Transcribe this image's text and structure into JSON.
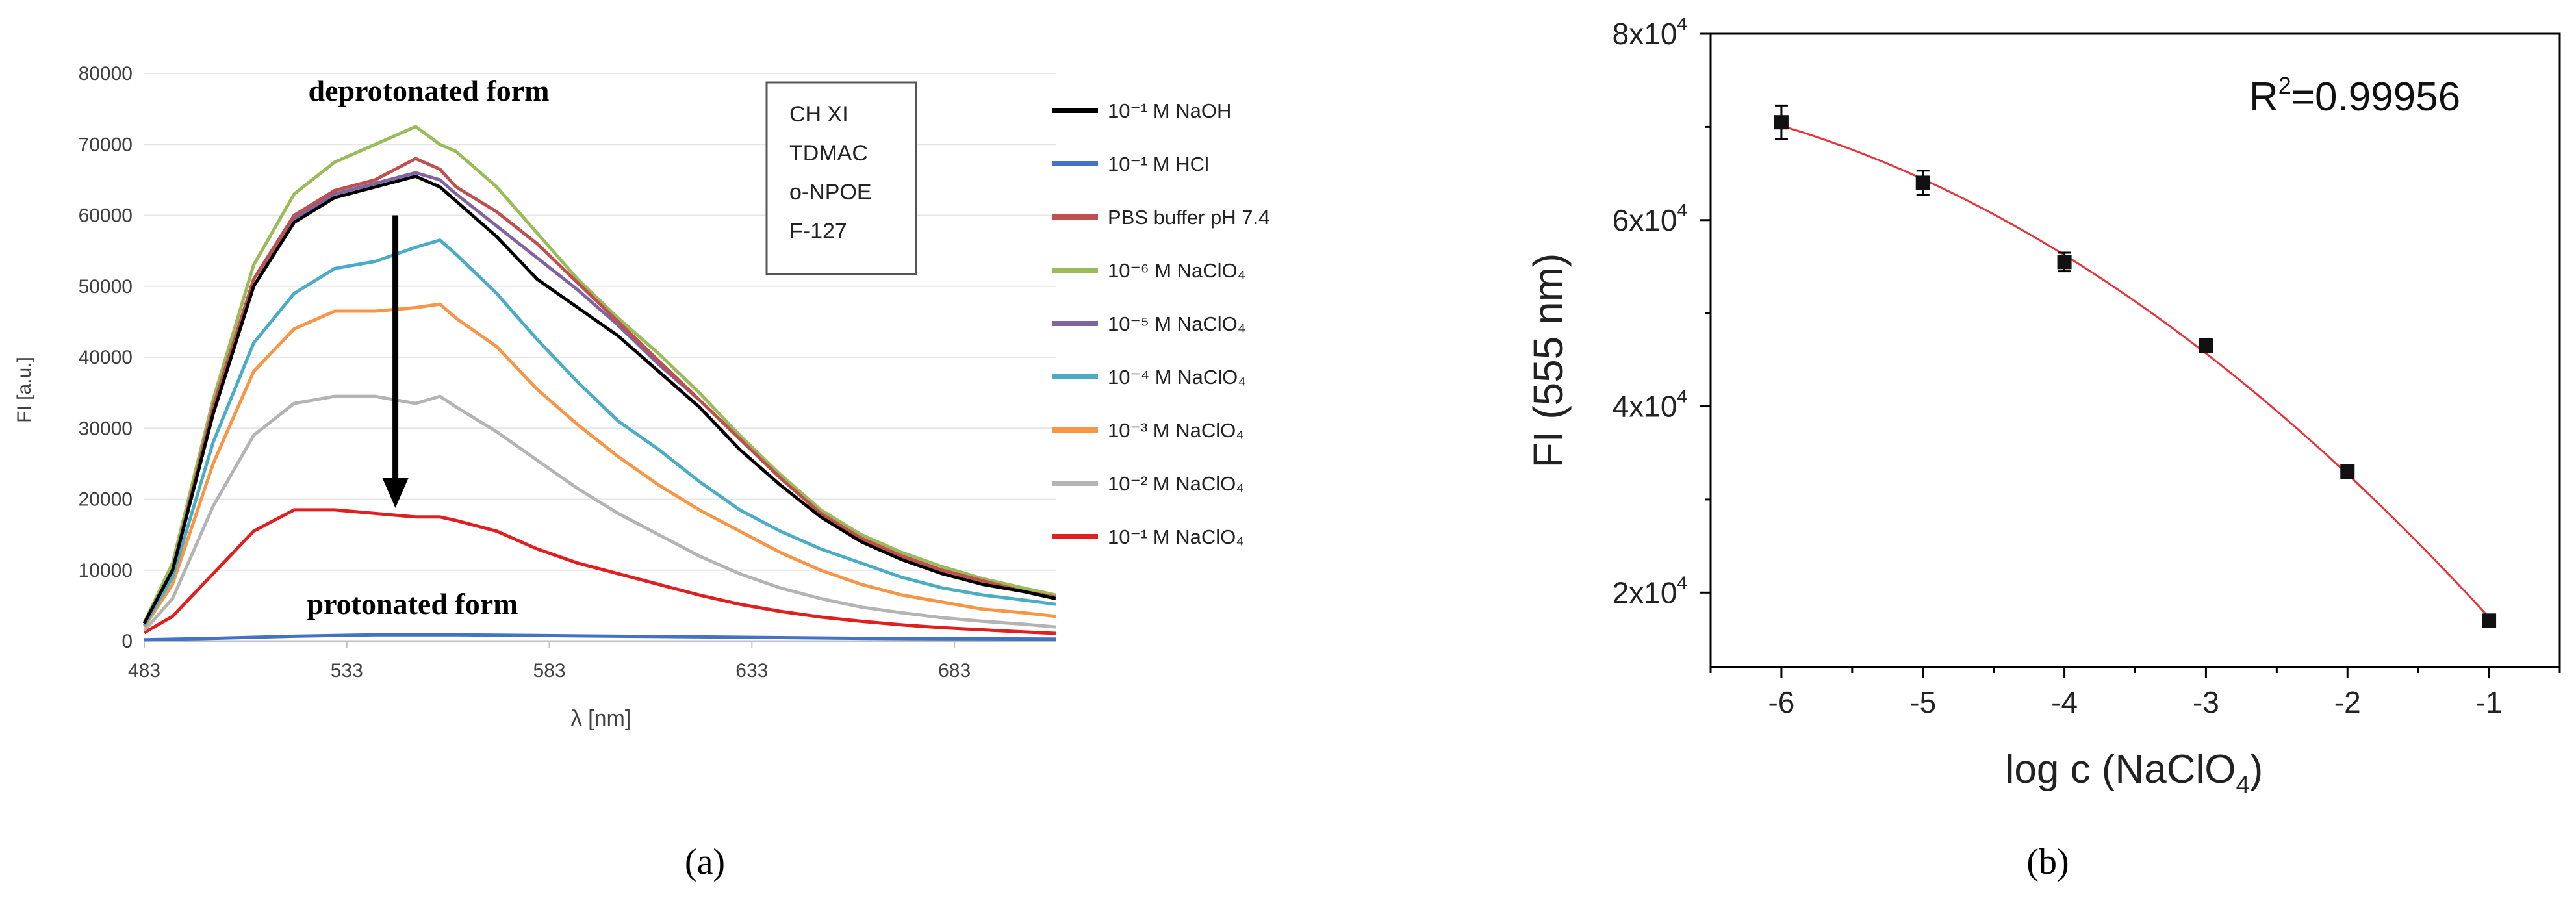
{
  "panel_labels": {
    "a": "(a)",
    "b": "(b)"
  },
  "chart_data": [
    {
      "type": "line",
      "panel": "a",
      "xlabel": "λ [nm]",
      "ylabel": "FI [a.u.]",
      "xlim": [
        483,
        708
      ],
      "ylim": [
        0,
        80000
      ],
      "xticks": [
        483,
        533,
        583,
        633,
        683
      ],
      "yticks": [
        0,
        10000,
        20000,
        30000,
        40000,
        50000,
        60000,
        70000,
        80000
      ],
      "annotations": {
        "top": "deprotonated form",
        "bottom": "protonated form"
      },
      "composition_box": [
        "CH XI",
        "TDMAC",
        "o-NPOE",
        "F-127"
      ],
      "arrow": {
        "x": 545,
        "y_start": 60000,
        "y_end": 19500
      },
      "series": [
        {
          "name": "10⁻¹ M NaOH",
          "color": "#000000",
          "key": "naoh",
          "x": [
            483,
            490,
            500,
            510,
            520,
            530,
            540,
            550,
            556,
            560,
            570,
            580,
            590,
            600,
            610,
            620,
            630,
            640,
            650,
            660,
            670,
            680,
            690,
            700,
            708
          ],
          "values": [
            2500,
            10000,
            32000,
            50000,
            59000,
            62500,
            64000,
            65500,
            64000,
            62000,
            57000,
            51000,
            47000,
            43000,
            38000,
            33000,
            27000,
            22000,
            17500,
            14000,
            11500,
            9500,
            8000,
            7000,
            6000
          ]
        },
        {
          "name": "10⁻¹ M HCl",
          "color": "#4472c4",
          "key": "hcl",
          "x": [
            483,
            500,
            520,
            540,
            560,
            580,
            600,
            620,
            640,
            660,
            680,
            708
          ],
          "values": [
            200,
            400,
            700,
            900,
            900,
            800,
            700,
            600,
            500,
            400,
            350,
            300
          ]
        },
        {
          "name": "PBS buffer pH 7.4",
          "color": "#c0504d",
          "key": "pbs",
          "x": [
            483,
            490,
            500,
            510,
            520,
            530,
            540,
            550,
            556,
            560,
            570,
            580,
            590,
            600,
            610,
            620,
            630,
            640,
            650,
            660,
            670,
            680,
            690,
            700,
            708
          ],
          "values": [
            2500,
            10000,
            33000,
            51000,
            60000,
            63500,
            65000,
            68000,
            66500,
            64000,
            60500,
            56000,
            50500,
            45000,
            39500,
            34000,
            28500,
            23000,
            18000,
            14500,
            12000,
            10000,
            8500,
            7000,
            6200
          ]
        },
        {
          "name": "10⁻⁶ M NaClO₄",
          "color": "#9bbb59",
          "key": "m6",
          "x": [
            483,
            490,
            500,
            510,
            520,
            530,
            540,
            550,
            556,
            560,
            570,
            580,
            590,
            600,
            610,
            620,
            630,
            640,
            650,
            660,
            670,
            680,
            690,
            700,
            708
          ],
          "values": [
            2600,
            11000,
            34000,
            53000,
            63000,
            67500,
            70000,
            72500,
            70000,
            69000,
            64000,
            57500,
            51000,
            45500,
            40500,
            35000,
            29000,
            23500,
            18500,
            15000,
            12500,
            10500,
            8800,
            7500,
            6500
          ]
        },
        {
          "name": "10⁻⁵ M NaClO₄",
          "color": "#8064a2",
          "key": "m5",
          "x": [
            483,
            490,
            500,
            510,
            520,
            530,
            540,
            550,
            556,
            560,
            570,
            580,
            590,
            600,
            610,
            620,
            630,
            640,
            650,
            660,
            670,
            680,
            690,
            700,
            708
          ],
          "values": [
            2500,
            10000,
            32000,
            50000,
            59500,
            63000,
            64500,
            66000,
            65000,
            63000,
            58500,
            54000,
            49500,
            44500,
            39000,
            34000,
            28500,
            23000,
            18000,
            14500,
            12000,
            10000,
            8500,
            7200,
            6300
          ]
        },
        {
          "name": "10⁻⁴ M NaClO₄",
          "color": "#4bacc6",
          "key": "m4",
          "x": [
            483,
            490,
            500,
            510,
            520,
            530,
            540,
            550,
            556,
            560,
            570,
            580,
            590,
            600,
            610,
            620,
            630,
            640,
            650,
            660,
            670,
            680,
            690,
            700,
            708
          ],
          "values": [
            2200,
            9000,
            28000,
            42000,
            49000,
            52500,
            53500,
            55500,
            56500,
            54500,
            49000,
            42500,
            36500,
            31000,
            27000,
            22500,
            18500,
            15500,
            13000,
            11000,
            9000,
            7500,
            6500,
            5800,
            5200
          ]
        },
        {
          "name": "10⁻³ M NaClO₄",
          "color": "#f79646",
          "key": "m3",
          "x": [
            483,
            490,
            500,
            510,
            520,
            530,
            540,
            550,
            556,
            560,
            570,
            580,
            590,
            600,
            610,
            620,
            630,
            640,
            650,
            660,
            670,
            680,
            690,
            700,
            708
          ],
          "values": [
            2000,
            8000,
            25000,
            38000,
            44000,
            46500,
            46500,
            47000,
            47500,
            45500,
            41500,
            35500,
            30500,
            26000,
            22000,
            18500,
            15500,
            12500,
            10000,
            8000,
            6500,
            5500,
            4500,
            4000,
            3500
          ]
        },
        {
          "name": "10⁻² M NaClO₄",
          "color": "#b4b4b4",
          "key": "m2",
          "x": [
            483,
            490,
            500,
            510,
            520,
            530,
            540,
            550,
            556,
            560,
            570,
            580,
            590,
            600,
            610,
            620,
            630,
            640,
            650,
            660,
            670,
            680,
            690,
            700,
            708
          ],
          "values": [
            1500,
            6000,
            19000,
            29000,
            33500,
            34500,
            34500,
            33500,
            34500,
            33000,
            29500,
            25500,
            21500,
            18000,
            15000,
            12000,
            9500,
            7500,
            6000,
            4800,
            4000,
            3300,
            2800,
            2400,
            2000
          ]
        },
        {
          "name": "10⁻¹ M NaClO₄",
          "color": "#e02020",
          "key": "m1",
          "x": [
            483,
            490,
            500,
            510,
            520,
            530,
            540,
            550,
            556,
            560,
            570,
            580,
            590,
            600,
            610,
            620,
            630,
            640,
            650,
            660,
            670,
            680,
            690,
            700,
            708
          ],
          "values": [
            1200,
            3500,
            9500,
            15500,
            18500,
            18500,
            18000,
            17500,
            17500,
            17000,
            15500,
            13000,
            11000,
            9500,
            8000,
            6500,
            5200,
            4200,
            3400,
            2800,
            2300,
            1900,
            1600,
            1300,
            1100
          ]
        }
      ]
    },
    {
      "type": "scatter",
      "panel": "b",
      "xlabel": "log c (NaClO",
      "xlabel_sub": "4",
      "xlabel_end": ")",
      "ylabel": "FI (555 nm)",
      "xlim": [
        -6.5,
        -0.5
      ],
      "ylim": [
        12000,
        80000
      ],
      "xticks": [
        -6,
        -5,
        -4,
        -3,
        -2,
        -1
      ],
      "yticks": [
        20000,
        40000,
        60000,
        80000
      ],
      "ytick_labels": [
        {
          "mantissa": "2x10",
          "exp": "4"
        },
        {
          "mantissa": "4x10",
          "exp": "4"
        },
        {
          "mantissa": "6x10",
          "exp": "4"
        },
        {
          "mantissa": "8x10",
          "exp": "4"
        }
      ],
      "r2_prefix": "R",
      "r2_exp": "2",
      "r2_value": "=0.99956",
      "points": [
        {
          "x": -6,
          "y": 70500,
          "err": 1800
        },
        {
          "x": -5,
          "y": 64000,
          "err": 1300
        },
        {
          "x": -4,
          "y": 55500,
          "err": 1000
        },
        {
          "x": -3,
          "y": 46500,
          "err": 700
        },
        {
          "x": -2,
          "y": 33000,
          "err": 700
        },
        {
          "x": -1,
          "y": 17000,
          "err": 400
        }
      ],
      "fit": {
        "color": "#e8333a",
        "x_start": -6.0,
        "x_end": -1.0
      },
      "marker_color": "#111111"
    }
  ]
}
